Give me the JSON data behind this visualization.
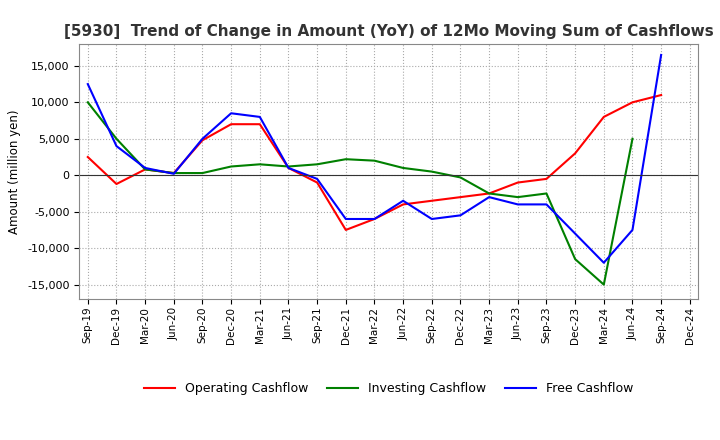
{
  "title": "[5930]  Trend of Change in Amount (YoY) of 12Mo Moving Sum of Cashflows",
  "ylabel": "Amount (million yen)",
  "ylim": [
    -17000,
    18000
  ],
  "yticks": [
    -15000,
    -10000,
    -5000,
    0,
    5000,
    10000,
    15000
  ],
  "x_labels": [
    "Sep-19",
    "Dec-19",
    "Mar-20",
    "Jun-20",
    "Sep-20",
    "Dec-20",
    "Mar-21",
    "Jun-21",
    "Sep-21",
    "Dec-21",
    "Mar-22",
    "Jun-22",
    "Sep-22",
    "Dec-22",
    "Mar-23",
    "Jun-23",
    "Sep-23",
    "Dec-23",
    "Mar-24",
    "Jun-24",
    "Sep-24",
    "Dec-24"
  ],
  "operating": [
    2500,
    -1200,
    800,
    300,
    4800,
    7000,
    7000,
    1000,
    -1000,
    -7500,
    -6000,
    -4000,
    -3500,
    -3000,
    -2500,
    -1000,
    -500,
    3000,
    8000,
    10000,
    11000,
    null
  ],
  "investing": [
    10000,
    5000,
    800,
    300,
    300,
    1200,
    1500,
    1200,
    1500,
    2200,
    2000,
    1000,
    500,
    -300,
    -2500,
    -3000,
    -2500,
    -11500,
    -15000,
    5000,
    null,
    null
  ],
  "free": [
    12500,
    4000,
    1000,
    200,
    5000,
    8500,
    8000,
    1000,
    -500,
    -6000,
    -6000,
    -3500,
    -6000,
    -5500,
    -3000,
    -4000,
    -4000,
    -8000,
    -12000,
    -7500,
    16500,
    null
  ],
  "line_colors": {
    "operating": "#ff0000",
    "investing": "#008000",
    "free": "#0000ff"
  },
  "background_color": "#ffffff",
  "grid_color": "#aaaaaa",
  "title_fontsize": 11,
  "legend_labels": [
    "Operating Cashflow",
    "Investing Cashflow",
    "Free Cashflow"
  ]
}
